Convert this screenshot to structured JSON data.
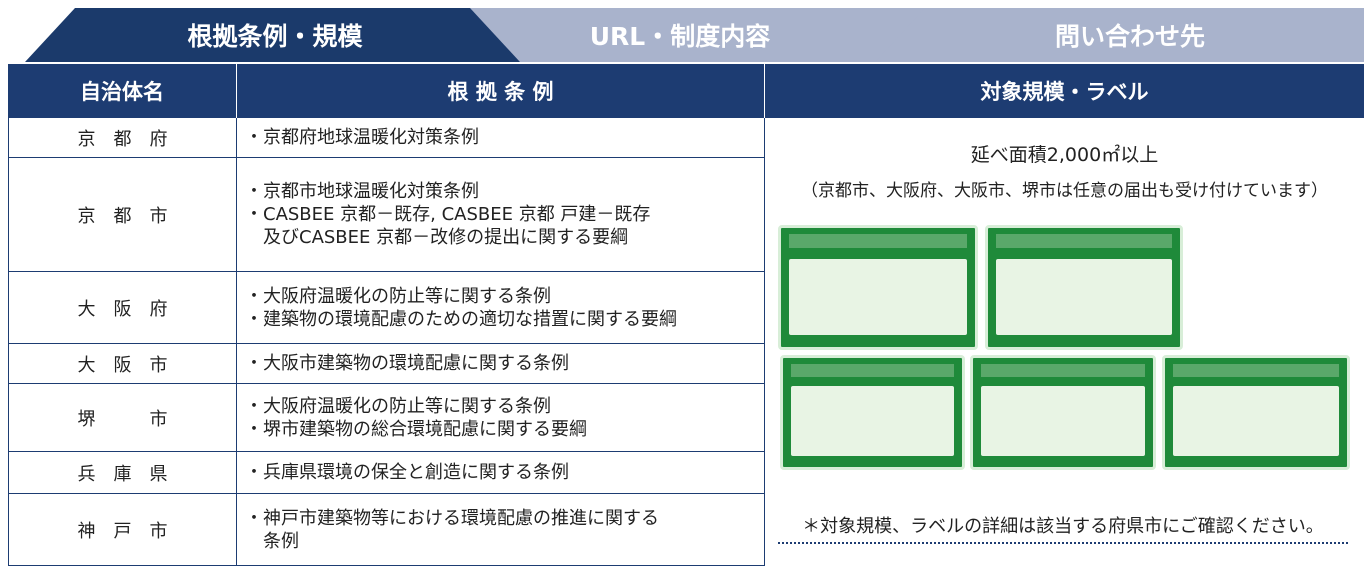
{
  "tabs": [
    "根拠条例・規模",
    "URL・制度内容",
    "問い合わせ先"
  ],
  "table": {
    "headers": [
      "自治体名",
      "根 拠 条 例",
      "対象規模・ラベル"
    ],
    "rows": [
      {
        "name": "京　都　府",
        "lines": [
          "・京都府地球温暖化対策条例"
        ]
      },
      {
        "name": "京　都　市",
        "lines": [
          "・京都市地球温暖化対策条例",
          "・CASBEE 京都－既存, CASBEE 京都 戸建－既存",
          "　及びCASBEE 京都－改修の提出に関する要綱"
        ]
      },
      {
        "name": "大　阪　府",
        "lines": [
          "・大阪府温暖化の防止等に関する条例",
          "・建築物の環境配慮のための適切な措置に関する要綱"
        ]
      },
      {
        "name": "大　阪　市",
        "lines": [
          "・大阪市建築物の環境配慮に関する条例"
        ]
      },
      {
        "name": "堺　　　市",
        "lines": [
          "・大阪府温暖化の防止等に関する条例",
          "・堺市建築物の総合環境配慮に関する要綱"
        ]
      },
      {
        "name": "兵　庫　県",
        "lines": [
          "・兵庫県環境の保全と創造に関する条例"
        ]
      },
      {
        "name": "神　戸　市",
        "lines": [
          "・神戸市建築物等における環境配慮の推進に関する",
          "　条例"
        ]
      }
    ],
    "scale": "延べ面積2,000㎡以上",
    "scale_note": "（京都市、大阪府、大阪市、堺市は任意の届出も受け付けています）",
    "footnote": "＊対象規模、ラベルの詳細は該当する府県市にご確認ください。"
  }
}
